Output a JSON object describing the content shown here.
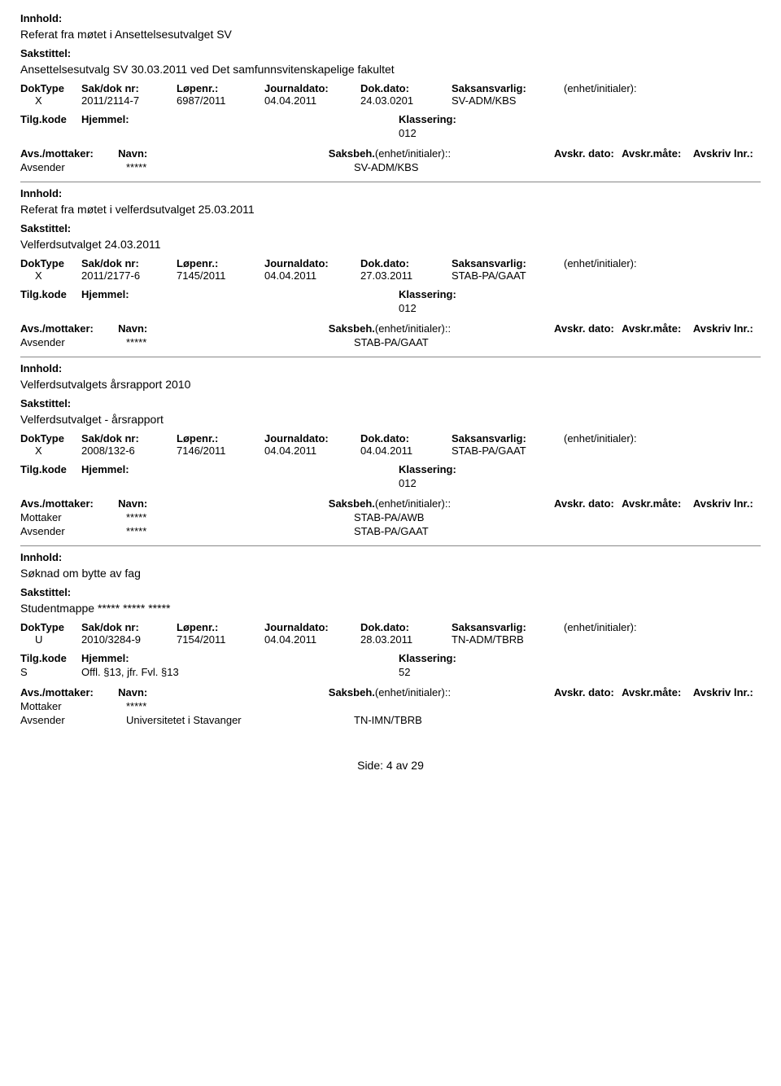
{
  "labels": {
    "innhold": "Innhold:",
    "sakstittel": "Sakstittel:",
    "doktype": "DokType",
    "sakdoknr": "Sak/dok nr:",
    "lopenr": "Løpenr.:",
    "journaldato": "Journaldato:",
    "dokdato": "Dok.dato:",
    "saksansvarlig": "Saksansvarlig:",
    "enhetinitialer": "(enhet/initialer):",
    "tilgkode": "Tilg.kode",
    "hjemmel": "Hjemmel:",
    "klassering": "Klassering:",
    "avsmottaker": "Avs./mottaker:",
    "navn": "Navn:",
    "saksbeh": "Saksbeh.",
    "avskrdato": "Avskr. dato:",
    "avskrmate": "Avskr.måte:",
    "avskrivlnr": "Avskriv lnr.:",
    "avsender": "Avsender",
    "mottaker": "Mottaker"
  },
  "entries": [
    {
      "innhold": "Referat fra møtet i Ansettelsesutvalget SV",
      "sakstittel": "Ansettelsesutvalg SV 30.03.2011 ved Det samfunnsvitenskapelige fakultet",
      "doktype": "X",
      "sakdoknr": "2011/2114-7",
      "lopenr": "6987/2011",
      "journaldato": "04.04.2011",
      "dokdato": "24.03.0201",
      "saksansvarlig": "SV-ADM/KBS",
      "enhetinitialer": "",
      "tilgkode": "",
      "hjemmel": "",
      "klassering": "012",
      "parties": [
        {
          "role": "Avsender",
          "navn": "*****",
          "saksbeh": "SV-ADM/KBS"
        }
      ]
    },
    {
      "innhold": "Referat fra møtet i velferdsutvalget 25.03.2011",
      "sakstittel": "Velferdsutvalget 24.03.2011",
      "doktype": "X",
      "sakdoknr": "2011/2177-6",
      "lopenr": "7145/2011",
      "journaldato": "04.04.2011",
      "dokdato": "27.03.2011",
      "saksansvarlig": "STAB-PA/GAAT",
      "enhetinitialer": "",
      "tilgkode": "",
      "hjemmel": "",
      "klassering": "012",
      "parties": [
        {
          "role": "Avsender",
          "navn": "*****",
          "saksbeh": "STAB-PA/GAAT"
        }
      ]
    },
    {
      "innhold": "Velferdsutvalgets årsrapport 2010",
      "sakstittel": "Velferdsutvalget - årsrapport",
      "doktype": "X",
      "sakdoknr": "2008/132-6",
      "lopenr": "7146/2011",
      "journaldato": "04.04.2011",
      "dokdato": "04.04.2011",
      "saksansvarlig": "STAB-PA/GAAT",
      "enhetinitialer": "",
      "tilgkode": "",
      "hjemmel": "",
      "klassering": "012",
      "parties": [
        {
          "role": "Mottaker",
          "navn": "*****",
          "saksbeh": "STAB-PA/AWB"
        },
        {
          "role": "Avsender",
          "navn": "*****",
          "saksbeh": "STAB-PA/GAAT"
        }
      ]
    },
    {
      "innhold": "Søknad om bytte av fag",
      "sakstittel": "Studentmappe ***** ***** *****",
      "doktype": "U",
      "sakdoknr": "2010/3284-9",
      "lopenr": "7154/2011",
      "journaldato": "04.04.2011",
      "dokdato": "28.03.2011",
      "saksansvarlig": "TN-ADM/TBRB",
      "enhetinitialer": "",
      "tilgkode": "S",
      "hjemmel": "Offl. §13, jfr. Fvl. §13",
      "klassering": "52",
      "parties": [
        {
          "role": "Mottaker",
          "navn": "*****",
          "saksbeh": ""
        },
        {
          "role": "Avsender",
          "navn": "Universitetet i Stavanger",
          "saksbeh": "TN-IMN/TBRB"
        }
      ]
    }
  ],
  "footer": {
    "side_label": "Side:",
    "page_current": "4",
    "av_label": "av",
    "page_total": "29"
  }
}
